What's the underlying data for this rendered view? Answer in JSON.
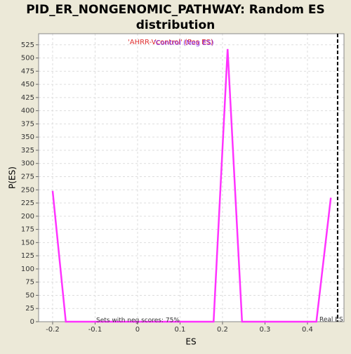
{
  "chart_data": {
    "type": "line",
    "title": [
      "PID_ER_NONGENOMIC_PATHWAY: Random ES",
      "distribution"
    ],
    "xlabel": "ES",
    "ylabel": "P(ES)",
    "legend": [
      {
        "name": "'AHRR-Vcontrol' (Pos ES)",
        "color": "#e03030"
      },
      {
        "name": "'Control (Neg ES)",
        "color": "#8a2be2"
      }
    ],
    "annotations": [
      "Sets with neg scores: 75%",
      "Real ES"
    ],
    "real_es": 0.471,
    "series": [
      {
        "name": "Random ES",
        "color": "#ff33ff",
        "x": [
          -0.2,
          -0.169,
          0.179,
          0.212,
          0.246,
          0.421,
          0.455
        ],
        "values": [
          248,
          0,
          0,
          517,
          0,
          0,
          235
        ]
      }
    ],
    "xlim": [
      -0.233,
      0.486
    ],
    "ylim": [
      0,
      546
    ],
    "xticks": [
      -0.2,
      -0.1,
      0.0,
      0.1,
      0.2,
      0.3,
      0.4
    ],
    "yticks": [
      0,
      25,
      50,
      75,
      100,
      125,
      150,
      175,
      200,
      225,
      250,
      275,
      300,
      325,
      350,
      375,
      400,
      425,
      450,
      475,
      500,
      525
    ],
    "grid": true
  }
}
